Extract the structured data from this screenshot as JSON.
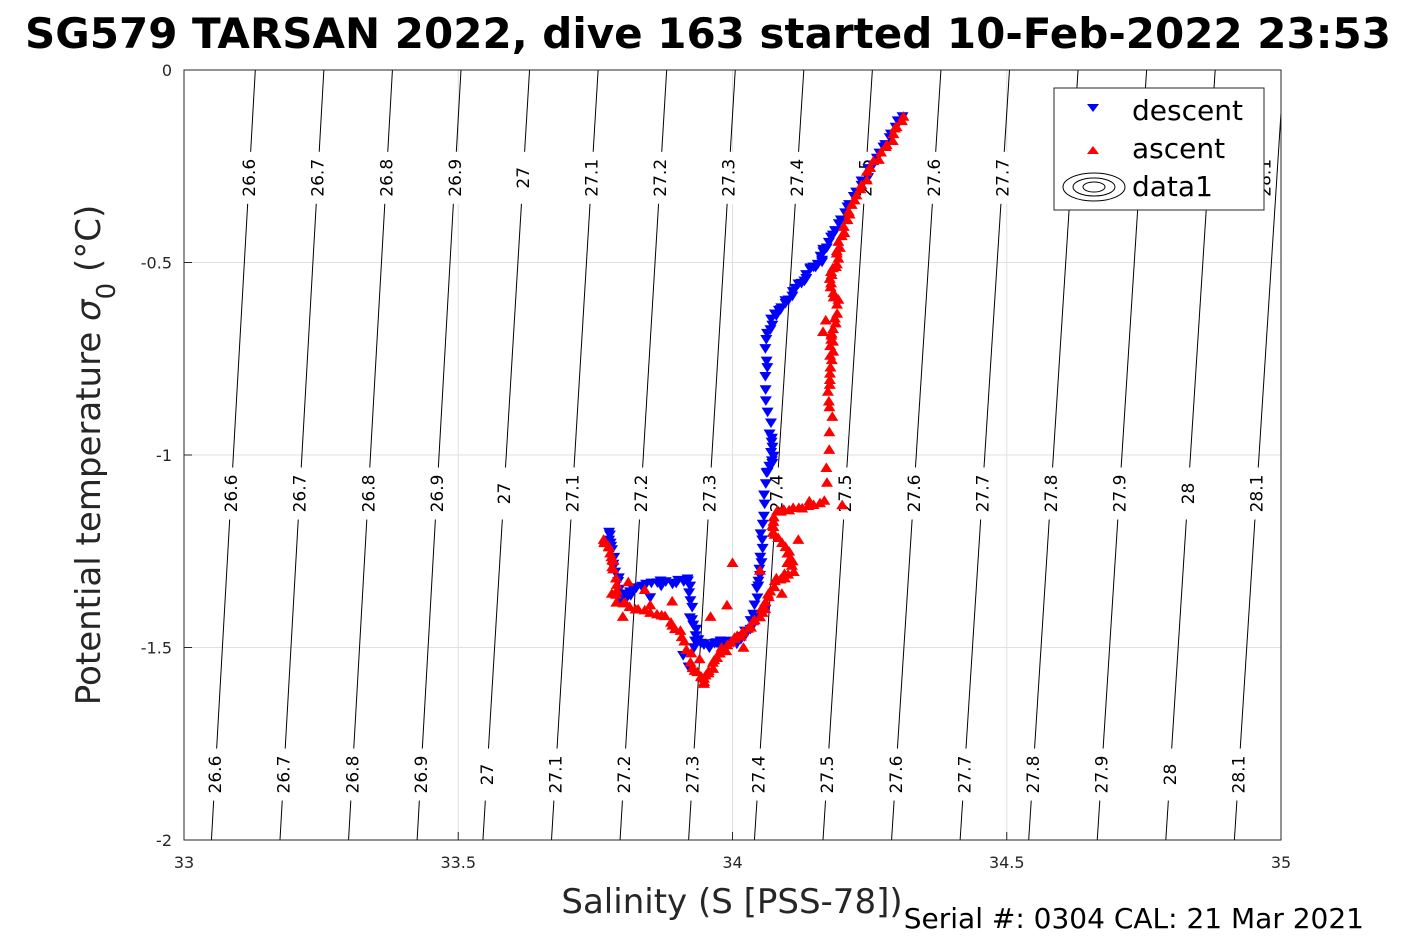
{
  "chart_data": {
    "type": "scatter",
    "title": "SG579 TARSAN 2022, dive 163 started 10-Feb-2022 23:53",
    "xlabel": "Salinity (S [PSS-78])",
    "ylabel_main": "Potential temperature ",
    "ylabel_sym": "σ",
    "ylabel_sub": "0",
    "ylabel_unit": " (°C)",
    "xlim": [
      33,
      35
    ],
    "ylim": [
      -2,
      0
    ],
    "x_ticks": [
      33,
      33.5,
      34,
      34.5,
      35
    ],
    "x_tick_labels": [
      "33",
      "33.5",
      "34",
      "34.5",
      "35"
    ],
    "y_ticks": [
      0,
      -0.5,
      -1,
      -1.5,
      -2
    ],
    "y_tick_labels": [
      "0",
      "-0.5",
      "-1",
      "-1.5",
      "-2"
    ],
    "grid": true,
    "legend_position": "top-right",
    "legend": [
      "descent",
      "ascent",
      "data1"
    ],
    "colors": {
      "descent": "#0000ff",
      "ascent": "#ff0000",
      "contour": "#000000",
      "grid": "#e0e0e0"
    },
    "density_contours": {
      "levels": [
        "26.6",
        "26.7",
        "26.8",
        "26.9",
        "27",
        "27.1",
        "27.2",
        "27.3",
        "27.4",
        "27.5",
        "27.6",
        "27.7",
        "27.8",
        "27.9",
        "28",
        "28.1"
      ],
      "line_x_at_top": [
        33.13,
        33.255,
        33.38,
        33.505,
        33.63,
        33.755,
        33.88,
        34.005,
        34.13,
        34.255,
        34.38,
        34.505,
        34.63,
        34.755,
        34.88,
        35.005
      ],
      "line_x_at_bottom": [
        33.05,
        33.175,
        33.3,
        33.425,
        33.545,
        33.67,
        33.795,
        33.92,
        34.04,
        34.165,
        34.29,
        34.415,
        34.54,
        34.665,
        34.79,
        34.915
      ],
      "label_rows_y": [
        -0.28,
        -1.1,
        -1.83
      ],
      "partial_label_extra": "28.1"
    },
    "series": [
      {
        "name": "descent",
        "marker": "triangle-down",
        "path": [
          [
            34.31,
            -0.12
          ],
          [
            34.28,
            -0.19
          ],
          [
            34.25,
            -0.26
          ],
          [
            34.22,
            -0.33
          ],
          [
            34.195,
            -0.4
          ],
          [
            34.17,
            -0.46
          ],
          [
            34.16,
            -0.5
          ],
          [
            34.14,
            -0.52
          ],
          [
            34.12,
            -0.56
          ],
          [
            34.1,
            -0.6
          ],
          [
            34.08,
            -0.63
          ],
          [
            34.065,
            -0.68
          ],
          [
            34.06,
            -0.8
          ],
          [
            34.07,
            -0.95
          ],
          [
            34.075,
            -1.0
          ],
          [
            34.065,
            -1.05
          ],
          [
            34.055,
            -1.18
          ],
          [
            34.05,
            -1.28
          ],
          [
            34.045,
            -1.35
          ],
          [
            34.03,
            -1.45
          ],
          [
            34.01,
            -1.49
          ],
          [
            33.98,
            -1.48
          ],
          [
            33.955,
            -1.5
          ],
          [
            33.935,
            -1.48
          ],
          [
            33.925,
            -1.42
          ],
          [
            33.92,
            -1.32
          ],
          [
            33.9,
            -1.33
          ],
          [
            33.85,
            -1.33
          ],
          [
            33.82,
            -1.35
          ],
          [
            33.8,
            -1.38
          ],
          [
            33.79,
            -1.32
          ],
          [
            33.78,
            -1.25
          ],
          [
            33.775,
            -1.2
          ]
        ],
        "extra": [
          [
            33.91,
            -1.52
          ],
          [
            33.92,
            -1.55
          ],
          [
            33.93,
            -1.5
          ],
          [
            33.85,
            -1.37
          ],
          [
            33.87,
            -1.34
          ],
          [
            34.06,
            -1.4
          ],
          [
            34.04,
            -1.42
          ]
        ]
      },
      {
        "name": "ascent",
        "marker": "triangle-up",
        "path": [
          [
            34.31,
            -0.12
          ],
          [
            34.29,
            -0.18
          ],
          [
            34.26,
            -0.24
          ],
          [
            34.23,
            -0.31
          ],
          [
            34.21,
            -0.38
          ],
          [
            34.195,
            -0.45
          ],
          [
            34.19,
            -0.5
          ],
          [
            34.175,
            -0.54
          ],
          [
            34.19,
            -0.6
          ],
          [
            34.185,
            -0.67
          ],
          [
            34.18,
            -0.73
          ],
          [
            34.175,
            -0.8
          ],
          [
            34.18,
            -0.9
          ],
          [
            34.17,
            -1.12
          ],
          [
            34.12,
            -1.14
          ],
          [
            34.08,
            -1.15
          ],
          [
            34.07,
            -1.2
          ],
          [
            34.1,
            -1.25
          ],
          [
            34.11,
            -1.3
          ],
          [
            34.08,
            -1.33
          ],
          [
            34.06,
            -1.38
          ],
          [
            34.05,
            -1.42
          ],
          [
            34.02,
            -1.46
          ],
          [
            34.0,
            -1.48
          ],
          [
            33.975,
            -1.52
          ],
          [
            33.96,
            -1.56
          ],
          [
            33.945,
            -1.59
          ],
          [
            33.93,
            -1.55
          ],
          [
            33.91,
            -1.47
          ],
          [
            33.88,
            -1.42
          ],
          [
            33.83,
            -1.4
          ],
          [
            33.79,
            -1.38
          ],
          [
            33.785,
            -1.3
          ],
          [
            33.775,
            -1.25
          ],
          [
            33.765,
            -1.22
          ]
        ],
        "extra": [
          [
            34.18,
            -0.7
          ],
          [
            34.17,
            -0.65
          ],
          [
            34.165,
            -0.68
          ],
          [
            34.2,
            -1.13
          ],
          [
            34.14,
            -1.12
          ],
          [
            34.12,
            -1.22
          ],
          [
            34.08,
            -1.32
          ],
          [
            34.05,
            -1.3
          ],
          [
            34.0,
            -1.28
          ],
          [
            33.99,
            -1.39
          ],
          [
            33.96,
            -1.42
          ],
          [
            33.89,
            -1.38
          ],
          [
            33.85,
            -1.39
          ],
          [
            33.8,
            -1.42
          ],
          [
            33.78,
            -1.36
          ],
          [
            33.81,
            -1.33
          ],
          [
            33.84,
            -1.35
          ],
          [
            33.94,
            -1.53
          ],
          [
            33.98,
            -1.5
          ],
          [
            34.02,
            -1.5
          ],
          [
            34.1,
            -1.28
          ],
          [
            34.09,
            -1.36
          ]
        ]
      }
    ]
  },
  "footer": {
    "serial": "Serial #: 0304  CAL: 21 Mar 2021"
  }
}
